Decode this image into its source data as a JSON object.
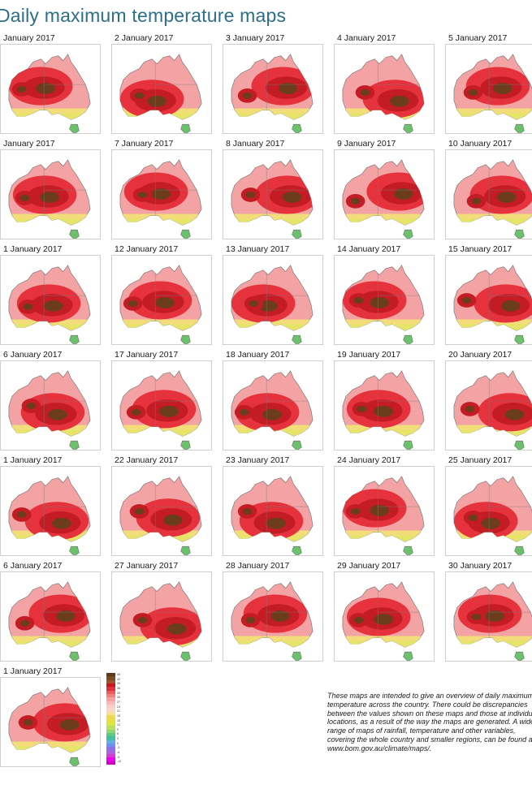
{
  "title": "Daily maximum temperature maps",
  "maps": [
    {
      "label": "January 2017"
    },
    {
      "label": "2 January 2017"
    },
    {
      "label": "3 January 2017"
    },
    {
      "label": "4 January 2017"
    },
    {
      "label": "5 January 2017"
    },
    {
      "label": "January 2017"
    },
    {
      "label": "7 January 2017"
    },
    {
      "label": "8 January 2017"
    },
    {
      "label": "9 January 2017"
    },
    {
      "label": "10 January 2017"
    },
    {
      "label": "1 January 2017"
    },
    {
      "label": "12 January 2017"
    },
    {
      "label": "13 January 2017"
    },
    {
      "label": "14 January 2017"
    },
    {
      "label": "15 January 2017"
    },
    {
      "label": "6 January 2017"
    },
    {
      "label": "17 January 2017"
    },
    {
      "label": "18 January 2017"
    },
    {
      "label": "19 January 2017"
    },
    {
      "label": "20 January 2017"
    },
    {
      "label": "1 January 2017"
    },
    {
      "label": "22 January 2017"
    },
    {
      "label": "23 January 2017"
    },
    {
      "label": "24 January 2017"
    },
    {
      "label": "25 January 2017"
    },
    {
      "label": "6 January 2017"
    },
    {
      "label": "27 January 2017"
    },
    {
      "label": "28 January 2017"
    },
    {
      "label": "29 January 2017"
    },
    {
      "label": "30 January 2017"
    },
    {
      "label": "1 January 2017"
    }
  ],
  "legend": {
    "colors": [
      "#5c3a1a",
      "#7a4a22",
      "#a0522d",
      "#c8141e",
      "#e0303a",
      "#ee5a5a",
      "#f08080",
      "#f4a0a0",
      "#f7b8b8",
      "#f9cccc",
      "#fad8c8",
      "#f5e19a",
      "#f0d850",
      "#e8e040",
      "#d8e840",
      "#b8e060",
      "#90d870",
      "#60c880",
      "#40c0a0",
      "#60b0e0",
      "#7090f0",
      "#9070e8",
      "#b060e0",
      "#d040d0",
      "#f000f0",
      "#d000c0"
    ],
    "ticks": [
      "45",
      "42",
      "39",
      "36",
      "33",
      "30",
      "27",
      "24",
      "21",
      "18",
      "15",
      "12",
      "9",
      "6",
      "3",
      "0",
      "-3",
      "-6",
      "-9",
      "-12"
    ]
  },
  "footnote": "These maps are intended to give an overview of daily maximum temperature across the country. There could be discrepancies between the values shown on these maps and those at individual locations, as a result of the way the maps are generated. A wide range of maps of rainfall, temperature and other variables, covering the whole country and smaller regions, can be found at www.bom.gov.au/climate/maps/."
}
